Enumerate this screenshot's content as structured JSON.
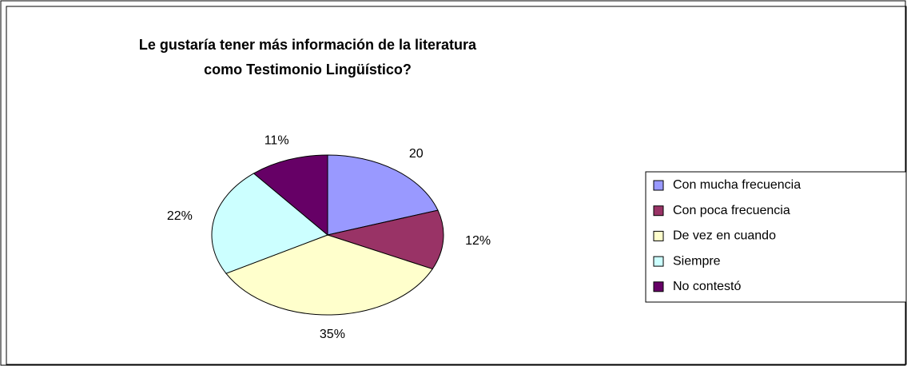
{
  "chart_data": {
    "type": "pie",
    "title_lines": [
      "Le gustaría tener más información de la literatura",
      "como Testimonio Lingüístico?"
    ],
    "categories": [
      "Con mucha frecuencia",
      "Con poca frecuencia",
      "De vez en cuando",
      "Siempre",
      "No contestó"
    ],
    "values": [
      20,
      12,
      35,
      22,
      11
    ],
    "value_labels": [
      "20",
      "12%",
      "35%",
      "22%",
      "11%"
    ],
    "colors": [
      "#9999ff",
      "#993366",
      "#ffffcc",
      "#ccffff",
      "#660066"
    ],
    "legend": "right"
  }
}
